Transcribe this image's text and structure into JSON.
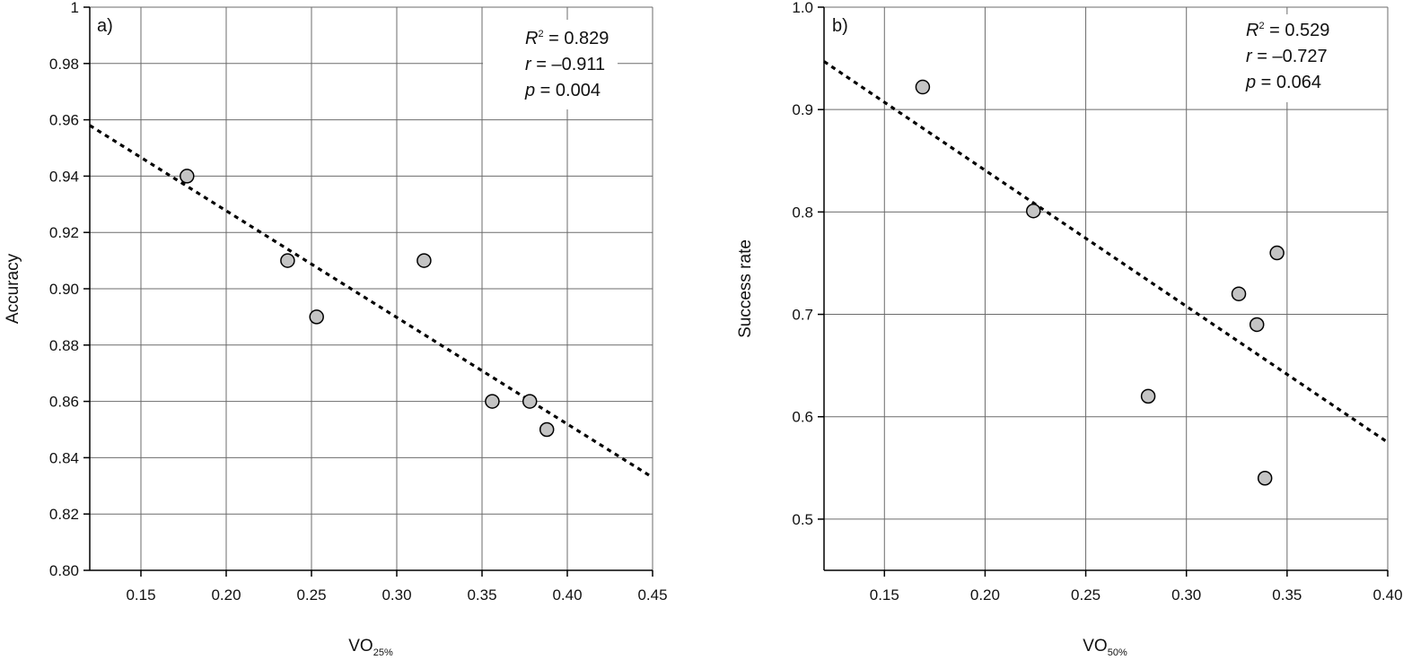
{
  "chart_data": [
    {
      "type": "scatter",
      "panel_label": "a)",
      "title": "",
      "xlabel": "VO",
      "xlabel_sub": "25%",
      "ylabel": "Accuracy",
      "xlim": [
        0.12,
        0.45
      ],
      "ylim": [
        0.8,
        1.0
      ],
      "xticks": [
        0.15,
        0.2,
        0.25,
        0.3,
        0.35,
        0.4,
        0.45
      ],
      "xtick_labels": [
        "0.15",
        "0.20",
        "0.25",
        "0.30",
        "0.35",
        "0.40",
        "0.45"
      ],
      "yticks": [
        0.8,
        0.82,
        0.84,
        0.86,
        0.88,
        0.9,
        0.92,
        0.94,
        0.96,
        0.98,
        1.0
      ],
      "ytick_labels": [
        "0.80",
        "0.82",
        "0.84",
        "0.86",
        "0.88",
        "0.90",
        "0.92",
        "0.94",
        "0.96",
        "0.98",
        "1"
      ],
      "grid": true,
      "legend": "none",
      "points": [
        {
          "x": 0.177,
          "y": 0.94
        },
        {
          "x": 0.236,
          "y": 0.91
        },
        {
          "x": 0.253,
          "y": 0.89
        },
        {
          "x": 0.316,
          "y": 0.91
        },
        {
          "x": 0.356,
          "y": 0.86
        },
        {
          "x": 0.378,
          "y": 0.86
        },
        {
          "x": 0.388,
          "y": 0.85
        }
      ],
      "trendline": {
        "style": "dashed",
        "x": [
          0.12,
          0.45
        ],
        "y": [
          0.958,
          0.833
        ]
      },
      "stats_box": {
        "position": "top-right",
        "r2_symbol": "R",
        "r2_sup": "2",
        "r2_value": " = 0.829",
        "r_symbol": "r",
        "r_value": " = –0.911",
        "p_symbol": "p",
        "p_value": " = 0.004"
      }
    },
    {
      "type": "scatter",
      "panel_label": "b)",
      "title": "",
      "xlabel": "VO",
      "xlabel_sub": "50%",
      "ylabel": "Success rate",
      "xlim": [
        0.12,
        0.4
      ],
      "ylim": [
        0.45,
        1.0
      ],
      "xticks": [
        0.15,
        0.2,
        0.25,
        0.3,
        0.35,
        0.4
      ],
      "xtick_labels": [
        "0.15",
        "0.20",
        "0.25",
        "0.30",
        "0.35",
        "0.40"
      ],
      "yticks": [
        0.5,
        0.6,
        0.7,
        0.8,
        0.9,
        1.0
      ],
      "ytick_labels": [
        "0.5",
        "0.6",
        "0.7",
        "0.8",
        "0.9",
        "1.0"
      ],
      "grid": true,
      "legend": "none",
      "points": [
        {
          "x": 0.169,
          "y": 0.922
        },
        {
          "x": 0.224,
          "y": 0.801
        },
        {
          "x": 0.281,
          "y": 0.62
        },
        {
          "x": 0.326,
          "y": 0.72
        },
        {
          "x": 0.335,
          "y": 0.69
        },
        {
          "x": 0.339,
          "y": 0.54
        },
        {
          "x": 0.345,
          "y": 0.76
        }
      ],
      "trendline": {
        "style": "dashed",
        "x": [
          0.12,
          0.4
        ],
        "y": [
          0.947,
          0.575
        ]
      },
      "stats_box": {
        "position": "top-right",
        "r2_symbol": "R",
        "r2_sup": "2",
        "r2_value": " = 0.529",
        "r_symbol": "r",
        "r_value": " = –0.727",
        "p_symbol": "p",
        "p_value": " = 0.064"
      }
    }
  ]
}
